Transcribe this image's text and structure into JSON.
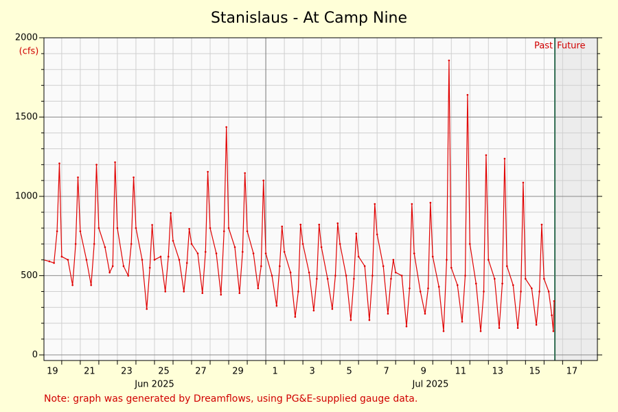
{
  "chart_data": {
    "type": "line",
    "title": "Stanislaus - At Camp Nine",
    "y_unit_label": "(cfs)",
    "note": "Note: graph was generated by Dreamflows, using PG&E-supplied gauge data.",
    "month_labels": [
      "Jun 2025",
      "Jul 2025"
    ],
    "past_label": "Past",
    "future_label": "Future",
    "now": "2025-07-16T14:00",
    "xlim": [
      "2025-06-19T01:00",
      "2025-07-18T21:00"
    ],
    "ylim": [
      -35,
      2000
    ],
    "yticks": [
      0,
      500,
      1000,
      1500,
      2000
    ],
    "y_minor_ticks": [
      100,
      200,
      300,
      400,
      600,
      700,
      800,
      900,
      1100,
      1200,
      1300,
      1400,
      1600,
      1700,
      1800,
      1900
    ],
    "xticks": [
      {
        "value": "2025-06-19",
        "label": "19"
      },
      {
        "value": "2025-06-21",
        "label": "21"
      },
      {
        "value": "2025-06-23",
        "label": "23"
      },
      {
        "value": "2025-06-25",
        "label": "25"
      },
      {
        "value": "2025-06-27",
        "label": "27"
      },
      {
        "value": "2025-06-29",
        "label": "29"
      },
      {
        "value": "2025-07-01",
        "label": "1"
      },
      {
        "value": "2025-07-03",
        "label": "3"
      },
      {
        "value": "2025-07-05",
        "label": "5"
      },
      {
        "value": "2025-07-07",
        "label": "7"
      },
      {
        "value": "2025-07-09",
        "label": "9"
      },
      {
        "value": "2025-07-11",
        "label": "11"
      },
      {
        "value": "2025-07-13",
        "label": "13"
      },
      {
        "value": "2025-07-15",
        "label": "15"
      },
      {
        "value": "2025-07-17",
        "label": "17"
      }
    ],
    "x_minor_ticks": [
      "2025-06-20",
      "2025-06-21",
      "2025-06-22",
      "2025-06-23",
      "2025-06-24",
      "2025-06-25",
      "2025-06-26",
      "2025-06-27",
      "2025-06-28",
      "2025-06-29",
      "2025-06-30",
      "2025-07-01",
      "2025-07-02",
      "2025-07-03",
      "2025-07-04",
      "2025-07-05",
      "2025-07-06",
      "2025-07-07",
      "2025-07-08",
      "2025-07-09",
      "2025-07-10",
      "2025-07-11",
      "2025-07-12",
      "2025-07-13",
      "2025-07-14",
      "2025-07-15",
      "2025-07-16",
      "2025-07-17",
      "2025-07-18"
    ],
    "grid": true,
    "series": [
      {
        "color": "#e00000",
        "x": [
          "2025-06-19T00:00",
          "2025-06-19T08:00",
          "2025-06-19T14:00",
          "2025-06-19T18:00",
          "2025-06-19T21:00",
          "2025-06-20T00:00",
          "2025-06-20T08:00",
          "2025-06-20T14:00",
          "2025-06-20T18:00",
          "2025-06-20T21:00",
          "2025-06-21T00:00",
          "2025-06-21T08:00",
          "2025-06-21T14:00",
          "2025-06-21T18:00",
          "2025-06-21T21:00",
          "2025-06-22T00:00",
          "2025-06-22T08:00",
          "2025-06-22T14:00",
          "2025-06-22T18:00",
          "2025-06-22T21:00",
          "2025-06-23T00:00",
          "2025-06-23T08:00",
          "2025-06-23T14:00",
          "2025-06-23T18:00",
          "2025-06-23T21:00",
          "2025-06-24T00:00",
          "2025-06-24T08:00",
          "2025-06-24T14:00",
          "2025-06-24T18:00",
          "2025-06-24T21:00",
          "2025-06-25T00:00",
          "2025-06-25T08:00",
          "2025-06-25T14:00",
          "2025-06-25T18:00",
          "2025-06-25T21:00",
          "2025-06-26T00:00",
          "2025-06-26T08:00",
          "2025-06-26T14:00",
          "2025-06-26T18:00",
          "2025-06-26T21:00",
          "2025-06-27T00:00",
          "2025-06-27T08:00",
          "2025-06-27T14:00",
          "2025-06-27T18:00",
          "2025-06-27T21:00",
          "2025-06-28T00:00",
          "2025-06-28T08:00",
          "2025-06-28T14:00",
          "2025-06-28T18:00",
          "2025-06-28T21:00",
          "2025-06-29T00:00",
          "2025-06-29T08:00",
          "2025-06-29T14:00",
          "2025-06-29T18:00",
          "2025-06-29T21:00",
          "2025-06-30T00:00",
          "2025-06-30T08:00",
          "2025-06-30T14:00",
          "2025-06-30T18:00",
          "2025-06-30T21:00",
          "2025-07-01T00:00",
          "2025-07-01T08:00",
          "2025-07-01T14:00",
          "2025-07-01T18:00",
          "2025-07-01T21:00",
          "2025-07-02T00:00",
          "2025-07-02T08:00",
          "2025-07-02T14:00",
          "2025-07-02T18:00",
          "2025-07-02T21:00",
          "2025-07-03T00:00",
          "2025-07-03T08:00",
          "2025-07-03T14:00",
          "2025-07-03T18:00",
          "2025-07-03T21:00",
          "2025-07-04T00:00",
          "2025-07-04T08:00",
          "2025-07-04T14:00",
          "2025-07-04T18:00",
          "2025-07-04T21:00",
          "2025-07-05T00:00",
          "2025-07-05T08:00",
          "2025-07-05T14:00",
          "2025-07-05T18:00",
          "2025-07-05T21:00",
          "2025-07-06T00:00",
          "2025-07-06T08:00",
          "2025-07-06T14:00",
          "2025-07-06T18:00",
          "2025-07-06T21:00",
          "2025-07-07T00:00",
          "2025-07-07T08:00",
          "2025-07-07T14:00",
          "2025-07-07T18:00",
          "2025-07-07T21:00",
          "2025-07-08T00:00",
          "2025-07-08T08:00",
          "2025-07-08T14:00",
          "2025-07-08T18:00",
          "2025-07-08T21:00",
          "2025-07-09T00:00",
          "2025-07-09T08:00",
          "2025-07-09T14:00",
          "2025-07-09T18:00",
          "2025-07-09T21:00",
          "2025-07-10T00:00",
          "2025-07-10T08:00",
          "2025-07-10T14:00",
          "2025-07-10T18:00",
          "2025-07-10T21:00",
          "2025-07-11T00:00",
          "2025-07-11T08:00",
          "2025-07-11T14:00",
          "2025-07-11T18:00",
          "2025-07-11T21:00",
          "2025-07-12T00:00",
          "2025-07-12T08:00",
          "2025-07-12T14:00",
          "2025-07-12T18:00",
          "2025-07-12T21:00",
          "2025-07-13T00:00",
          "2025-07-13T08:00",
          "2025-07-13T14:00",
          "2025-07-13T18:00",
          "2025-07-13T21:00",
          "2025-07-14T00:00",
          "2025-07-14T08:00",
          "2025-07-14T14:00",
          "2025-07-14T18:00",
          "2025-07-14T21:00",
          "2025-07-15T00:00",
          "2025-07-15T08:00",
          "2025-07-15T14:00",
          "2025-07-15T18:00",
          "2025-07-15T21:00",
          "2025-07-16T00:00",
          "2025-07-16T06:00",
          "2025-07-16T10:00",
          "2025-07-16T12:00",
          "2025-07-16T13:00"
        ],
        "values": [
          600,
          590,
          580,
          780,
          1208,
          620,
          600,
          440,
          700,
          1120,
          780,
          600,
          440,
          700,
          1200,
          800,
          680,
          520,
          560,
          1215,
          800,
          560,
          500,
          700,
          1120,
          800,
          600,
          290,
          550,
          820,
          600,
          620,
          400,
          620,
          895,
          720,
          600,
          400,
          580,
          795,
          700,
          640,
          390,
          650,
          1155,
          800,
          640,
          380,
          780,
          1437,
          800,
          680,
          390,
          650,
          1147,
          780,
          640,
          420,
          560,
          1100,
          640,
          500,
          310,
          560,
          810,
          650,
          520,
          240,
          400,
          822,
          700,
          520,
          280,
          480,
          822,
          680,
          480,
          290,
          500,
          830,
          700,
          500,
          220,
          480,
          766,
          620,
          560,
          220,
          500,
          952,
          760,
          560,
          260,
          480,
          600,
          520,
          500,
          180,
          420,
          952,
          640,
          400,
          260,
          420,
          960,
          620,
          430,
          150,
          600,
          1857,
          550,
          440,
          210,
          500,
          1640,
          700,
          450,
          150,
          400,
          1260,
          600,
          480,
          170,
          450,
          1238,
          560,
          440,
          170,
          400,
          1087,
          480,
          420,
          190,
          400,
          822,
          480,
          400,
          250,
          150,
          340
        ]
      }
    ]
  }
}
